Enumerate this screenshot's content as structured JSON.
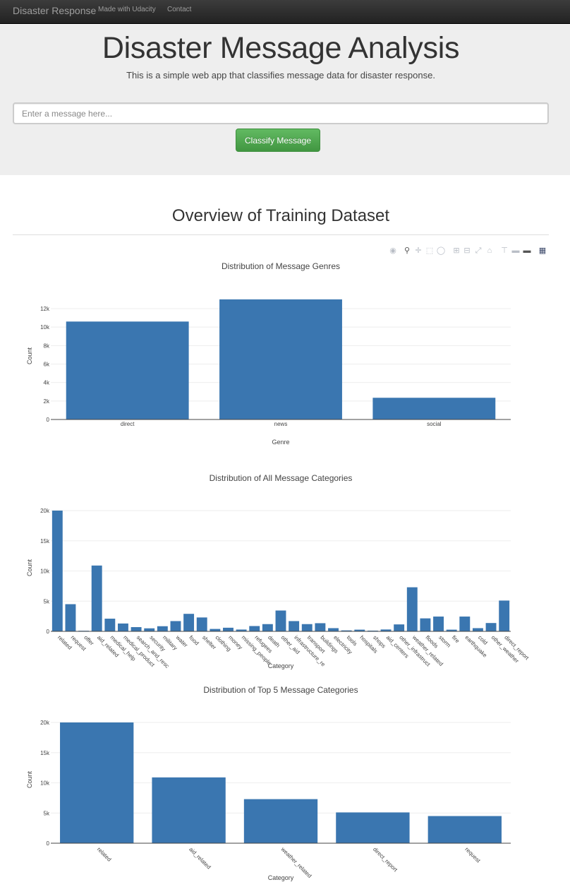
{
  "navbar": {
    "brand": "Disaster Response",
    "links": [
      "Made with Udacity",
      "Contact"
    ]
  },
  "jumbotron": {
    "title": "Disaster Message Analysis",
    "subtitle": "This is a simple web app that classifies message data for disaster response.",
    "input_placeholder": "Enter a message here...",
    "input_value": "",
    "button_label": "Classify Message"
  },
  "section": {
    "title": "Overview of Training Dataset"
  },
  "modebar_icons": [
    "camera-icon",
    "zoom-icon",
    "pan-icon",
    "box-select-icon",
    "lasso-icon",
    "zoom-in-icon",
    "zoom-out-icon",
    "autoscale-icon",
    "reset-axes-icon",
    "spike-lines-icon",
    "hover-closest-icon",
    "hover-compare-icon",
    "plotly-logo-icon"
  ],
  "colors": {
    "bar": "#3a76b0",
    "navbar": "#222222",
    "jumbotron": "#eeeeee",
    "button": "#5cb85c"
  },
  "chart_data": [
    {
      "type": "bar",
      "title": "Distribution of Message Genres",
      "xlabel": "Genre",
      "ylabel": "Count",
      "categories": [
        "direct",
        "news",
        "social"
      ],
      "values": [
        10600,
        13000,
        2350
      ],
      "ylim": [
        0,
        13000
      ],
      "yticks": [
        0,
        2000,
        4000,
        6000,
        8000,
        10000,
        12000
      ],
      "ytick_labels": [
        "0",
        "2k",
        "4k",
        "6k",
        "8k",
        "10k",
        "12k"
      ],
      "grid": true
    },
    {
      "type": "bar",
      "title": "Distribution of All Message Categories",
      "xlabel": "Category",
      "ylabel": "Count",
      "categories": [
        "related",
        "request",
        "offer",
        "aid_related",
        "medical_help",
        "medical_products",
        "search_and_rescue",
        "security",
        "military",
        "water",
        "food",
        "shelter",
        "clothing",
        "money",
        "missing_people",
        "refugees",
        "death",
        "other_aid",
        "infrastructure_related",
        "transport",
        "buildings",
        "electricity",
        "tools",
        "hospitals",
        "shops",
        "aid_centers",
        "other_infrastructure",
        "weather_related",
        "floods",
        "storm",
        "fire",
        "earthquake",
        "cold",
        "other_weather",
        "direct_report"
      ],
      "tick_labels": [
        "related",
        "request",
        "offer",
        "aid_related",
        "medical_help",
        "medical_product",
        "search_and_resc",
        "security",
        "military",
        "water",
        "food",
        "shelter",
        "clothing",
        "money",
        "missing_people",
        "refugees",
        "death",
        "other_aid",
        "infrastructure_re",
        "transport",
        "buildings",
        "electricity",
        "tools",
        "hospitals",
        "shops",
        "aid_centers",
        "other_infrastruct",
        "weather_related",
        "floods",
        "storm",
        "fire",
        "earthquake",
        "cold",
        "other_weather",
        "direct_report"
      ],
      "values": [
        20000,
        4500,
        100,
        10900,
        2100,
        1300,
        700,
        500,
        850,
        1700,
        2900,
        2300,
        400,
        600,
        300,
        880,
        1200,
        3450,
        1700,
        1200,
        1350,
        530,
        160,
        280,
        120,
        310,
        1150,
        7300,
        2150,
        2450,
        280,
        2450,
        530,
        1380,
        5100
      ],
      "ylim": [
        0,
        20000
      ],
      "yticks": [
        0,
        5000,
        10000,
        15000,
        20000
      ],
      "ytick_labels": [
        "0",
        "5k",
        "10k",
        "15k",
        "20k"
      ],
      "grid": true
    },
    {
      "type": "bar",
      "title": "Distribution of Top 5 Message Categories",
      "xlabel": "Category",
      "ylabel": "Count",
      "categories": [
        "related",
        "aid_related",
        "weather_related",
        "direct_report",
        "request"
      ],
      "values": [
        20000,
        10900,
        7300,
        5100,
        4500
      ],
      "ylim": [
        0,
        20000
      ],
      "yticks": [
        0,
        5000,
        10000,
        15000,
        20000
      ],
      "ytick_labels": [
        "0",
        "5k",
        "10k",
        "15k",
        "20k"
      ],
      "grid": true
    }
  ]
}
